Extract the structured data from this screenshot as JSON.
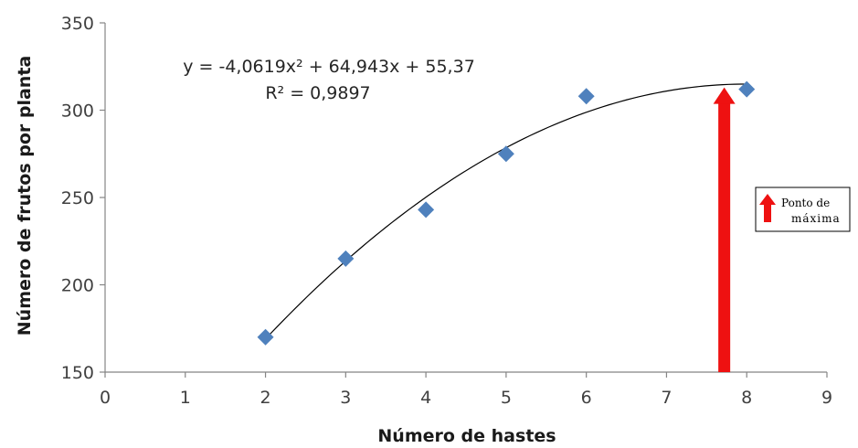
{
  "chart_data": {
    "type": "scatter",
    "xlabel": "Número de hastes",
    "ylabel": "Número de frutos por planta",
    "xlim": [
      0,
      9
    ],
    "ylim": [
      150,
      350
    ],
    "xticks": [
      "0",
      "1",
      "2",
      "3",
      "4",
      "5",
      "6",
      "7",
      "8",
      "9"
    ],
    "yticks": [
      "150",
      "200",
      "250",
      "300",
      "350"
    ],
    "grid": false,
    "series": [
      {
        "marker": "diamond",
        "color": "#4f81bd",
        "points": [
          {
            "x": 2,
            "y": 170
          },
          {
            "x": 3,
            "y": 215
          },
          {
            "x": 4,
            "y": 243
          },
          {
            "x": 5,
            "y": 275
          },
          {
            "x": 6,
            "y": 308
          },
          {
            "x": 8,
            "y": 312
          }
        ]
      }
    ],
    "trendline": {
      "type": "polynomial",
      "coefficients": {
        "a": -4.0619,
        "b": 64.943,
        "c": 55.37
      },
      "x_range": [
        2,
        8
      ],
      "color": "#000000",
      "equation_text": "y = -4,0619x² + 64,943x + 55,37",
      "r2_text": "R² = 0,9897"
    },
    "annotation": {
      "type": "arrow",
      "x": 7.72,
      "y_top": 313,
      "y_bottom": 150,
      "color": "#ee1111",
      "legend": {
        "label_line1": "Ponto de",
        "label_line2": "máxima"
      }
    }
  }
}
